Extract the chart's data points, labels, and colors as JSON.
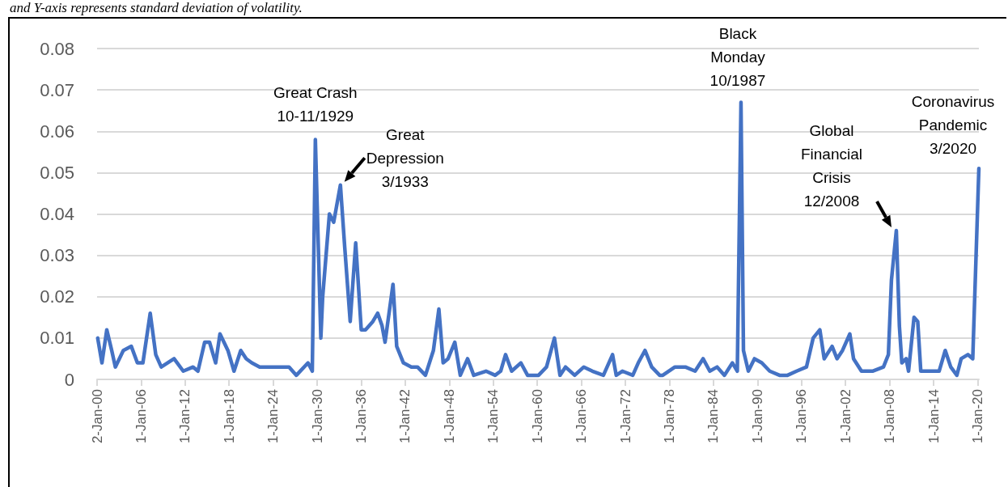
{
  "chart_data": {
    "type": "line",
    "annotations": [
      "and Y-axis represents standard deviation of volatility.",
      {
        "text": "Great Crash\n10-11/1929",
        "x": "1929-10",
        "y": 0.058
      },
      {
        "text": "Great\nDepression\n3/1933",
        "x": "1933-03",
        "y": 0.047
      },
      {
        "text": "Black\nMonday\n10/1987",
        "x": "1987-10",
        "y": 0.067
      },
      {
        "text": "Global\nFinancial\nCrisis\n12/2008",
        "x": "2008-12",
        "y": 0.036
      },
      {
        "text": "Coronavirus\nPandemic\n3/2020",
        "x": "2020-03",
        "y": 0.051
      }
    ],
    "x": [
      "1900-02",
      "1900-09",
      "1901-05",
      "1902-01",
      "1902-07",
      "1903-08",
      "1904-09",
      "1905-07",
      "1906-04",
      "1907-04",
      "1908-01",
      "1908-10",
      "1910-07",
      "1911-10",
      "1913-02",
      "1913-10",
      "1914-09",
      "1915-05",
      "1916-03",
      "1916-10",
      "1917-11",
      "1918-09",
      "1919-08",
      "1920-05",
      "1921-02",
      "1922-03",
      "1923-07",
      "1925-01",
      "1926-03",
      "1927-03",
      "1928-10",
      "1929-05",
      "1929-10",
      "1930-07",
      "1930-10",
      "1931-09",
      "1932-04",
      "1933-03",
      "1933-10",
      "1934-07",
      "1935-04",
      "1936-01",
      "1936-08",
      "1937-08",
      "1938-04",
      "1938-11",
      "1939-04",
      "1940-05",
      "1940-11",
      "1941-10",
      "1942-11",
      "1943-09",
      "1944-10",
      "1945-11",
      "1946-08",
      "1947-03",
      "1947-11",
      "1948-10",
      "1949-07",
      "1950-07",
      "1951-05",
      "1953-01",
      "1954-04",
      "1955-01",
      "1955-09",
      "1956-07",
      "1957-10",
      "1958-09",
      "1960-03",
      "1961-04",
      "1962-05",
      "1963-02",
      "1963-11",
      "1965-02",
      "1966-05",
      "1967-07",
      "1969-01",
      "1970-04",
      "1970-10",
      "1971-08",
      "1973-01",
      "1973-10",
      "1974-09",
      "1975-08",
      "1976-09",
      "1977-02",
      "1978-10",
      "1980-03",
      "1981-07",
      "1982-08",
      "1983-07",
      "1984-07",
      "1985-07",
      "1986-08",
      "1987-04",
      "1987-10",
      "1988-02",
      "1988-10",
      "1989-08",
      "1990-08",
      "1991-09",
      "1993-01",
      "1994-02",
      "1995-05",
      "1996-09",
      "1997-08",
      "1998-07",
      "1999-02",
      "2000-03",
      "2000-11",
      "2001-08",
      "2002-08",
      "2003-02",
      "2004-03",
      "2005-09",
      "2007-03",
      "2007-11",
      "2008-04",
      "2008-12",
      "2009-05",
      "2009-09",
      "2010-04",
      "2010-08",
      "2011-05",
      "2011-11",
      "2012-04",
      "2013-09",
      "2014-10",
      "2015-08",
      "2016-05",
      "2017-03",
      "2017-10",
      "2018-09",
      "2019-05",
      "2020-03"
    ],
    "series": [
      {
        "color": "#4472c4",
        "values": [
          0.01,
          0.004,
          0.012,
          0.007,
          0.003,
          0.007,
          0.008,
          0.004,
          0.004,
          0.016,
          0.006,
          0.003,
          0.005,
          0.002,
          0.003,
          0.002,
          0.009,
          0.009,
          0.004,
          0.011,
          0.007,
          0.002,
          0.007,
          0.005,
          0.004,
          0.003,
          0.003,
          0.003,
          0.003,
          0.001,
          0.004,
          0.002,
          0.058,
          0.01,
          0.02,
          0.04,
          0.038,
          0.047,
          0.032,
          0.014,
          0.033,
          0.012,
          0.012,
          0.014,
          0.016,
          0.013,
          0.009,
          0.023,
          0.008,
          0.004,
          0.003,
          0.003,
          0.001,
          0.007,
          0.017,
          0.004,
          0.005,
          0.009,
          0.001,
          0.005,
          0.001,
          0.002,
          0.001,
          0.002,
          0.006,
          0.002,
          0.004,
          0.001,
          0.001,
          0.003,
          0.01,
          0.001,
          0.003,
          0.001,
          0.003,
          0.002,
          0.001,
          0.006,
          0.001,
          0.002,
          0.001,
          0.004,
          0.007,
          0.003,
          0.001,
          0.001,
          0.003,
          0.003,
          0.002,
          0.005,
          0.002,
          0.003,
          0.001,
          0.004,
          0.002,
          0.067,
          0.007,
          0.002,
          0.005,
          0.004,
          0.002,
          0.001,
          0.001,
          0.002,
          0.003,
          0.01,
          0.012,
          0.005,
          0.008,
          0.005,
          0.007,
          0.011,
          0.005,
          0.002,
          0.002,
          0.003,
          0.006,
          0.024,
          0.036,
          0.013,
          0.004,
          0.005,
          0.002,
          0.015,
          0.014,
          0.002,
          0.002,
          0.002,
          0.007,
          0.003,
          0.001,
          0.005,
          0.006,
          0.005,
          0.051
        ]
      }
    ],
    "xlim": [
      "1900-01-02",
      "2020-03"
    ],
    "xticks": [
      {
        "value": "1900-01-02",
        "label": "2-Jan-00"
      },
      {
        "value": "1906-01-01",
        "label": "1-Jan-06"
      },
      {
        "value": "1912-01-01",
        "label": "1-Jan-12"
      },
      {
        "value": "1918-01-01",
        "label": "1-Jan-18"
      },
      {
        "value": "1924-01-01",
        "label": "1-Jan-24"
      },
      {
        "value": "1930-01-01",
        "label": "1-Jan-30"
      },
      {
        "value": "1936-01-01",
        "label": "1-Jan-36"
      },
      {
        "value": "1942-01-01",
        "label": "1-Jan-42"
      },
      {
        "value": "1948-01-01",
        "label": "1-Jan-48"
      },
      {
        "value": "1954-01-01",
        "label": "1-Jan-54"
      },
      {
        "value": "1960-01-01",
        "label": "1-Jan-60"
      },
      {
        "value": "1966-01-01",
        "label": "1-Jan-66"
      },
      {
        "value": "1972-01-01",
        "label": "1-Jan-72"
      },
      {
        "value": "1978-01-01",
        "label": "1-Jan-78"
      },
      {
        "value": "1984-01-01",
        "label": "1-Jan-84"
      },
      {
        "value": "1990-01-01",
        "label": "1-Jan-90"
      },
      {
        "value": "1996-01-01",
        "label": "1-Jan-96"
      },
      {
        "value": "2002-01-01",
        "label": "1-Jan-02"
      },
      {
        "value": "2008-01-01",
        "label": "1-Jan-08"
      },
      {
        "value": "2014-01-01",
        "label": "1-Jan-14"
      },
      {
        "value": "2020-01-01",
        "label": "1-Jan-20"
      }
    ],
    "ylim": [
      0,
      0.08
    ],
    "yticks": [
      0,
      0.01,
      0.02,
      0.03,
      0.04,
      0.05,
      0.06,
      0.07,
      0.08
    ],
    "grid": "y",
    "marker": "none",
    "line_style": "solid"
  }
}
